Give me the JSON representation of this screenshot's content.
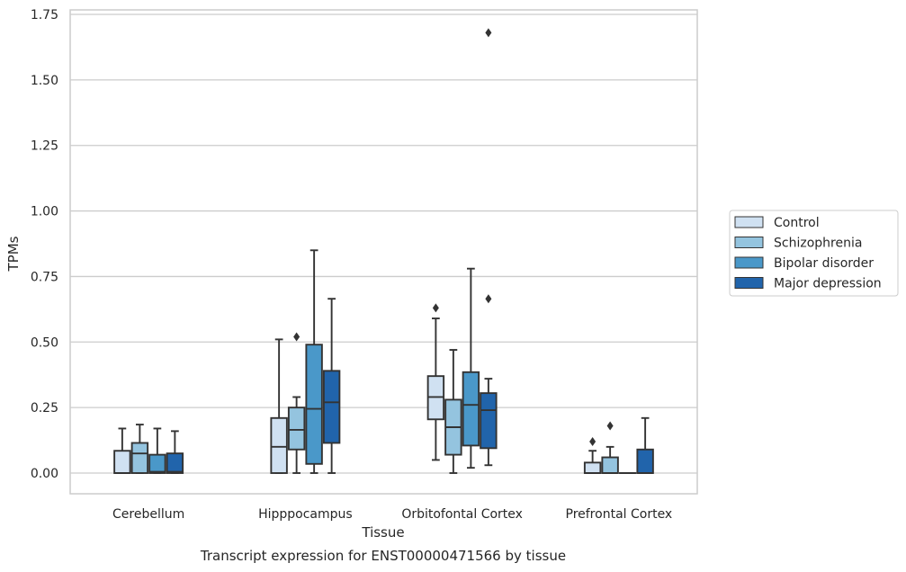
{
  "chart_data": {
    "type": "box",
    "title": "",
    "xlabel": "Tissue",
    "ylabel": "TPMs",
    "caption": "Transcript expression for ENST00000471566 by tissue",
    "ylim": [
      -0.08,
      1.76
    ],
    "yticks": [
      0.0,
      0.25,
      0.5,
      0.75,
      1.0,
      1.25,
      1.5,
      1.75
    ],
    "ytick_labels": [
      "0.00",
      "0.25",
      "0.50",
      "0.75",
      "1.00",
      "1.25",
      "1.50",
      "1.75"
    ],
    "grid": "horizontal",
    "legend_position": "right",
    "categories": [
      "Cerebellum",
      "Hipppocampus",
      "Orbitofontal Cortex",
      "Prefrontal Cortex"
    ],
    "series": [
      {
        "name": "Control",
        "color": "#d0e1f2",
        "boxes": [
          {
            "whislo": 0.0,
            "q1": 0.0,
            "med": 0.0,
            "q3": 0.085,
            "whishi": 0.17,
            "fliers": []
          },
          {
            "whislo": 0.0,
            "q1": 0.0,
            "med": 0.1,
            "q3": 0.21,
            "whishi": 0.51,
            "fliers": []
          },
          {
            "whislo": 0.05,
            "q1": 0.205,
            "med": 0.29,
            "q3": 0.37,
            "whishi": 0.59,
            "fliers": [
              0.63
            ]
          },
          {
            "whislo": 0.0,
            "q1": 0.0,
            "med": 0.0,
            "q3": 0.04,
            "whishi": 0.085,
            "fliers": [
              0.12
            ]
          }
        ]
      },
      {
        "name": "Schizophrenia",
        "color": "#94c4df",
        "boxes": [
          {
            "whislo": 0.0,
            "q1": 0.0,
            "med": 0.075,
            "q3": 0.115,
            "whishi": 0.185,
            "fliers": []
          },
          {
            "whislo": 0.0,
            "q1": 0.09,
            "med": 0.165,
            "q3": 0.25,
            "whishi": 0.29,
            "fliers": [
              0.52
            ]
          },
          {
            "whislo": 0.0,
            "q1": 0.07,
            "med": 0.175,
            "q3": 0.28,
            "whishi": 0.47,
            "fliers": []
          },
          {
            "whislo": 0.0,
            "q1": 0.0,
            "med": 0.0,
            "q3": 0.06,
            "whishi": 0.1,
            "fliers": [
              0.18
            ]
          }
        ]
      },
      {
        "name": "Bipolar disorder",
        "color": "#4a98c9",
        "boxes": [
          {
            "whislo": 0.0,
            "q1": 0.0,
            "med": 0.005,
            "q3": 0.07,
            "whishi": 0.17,
            "fliers": []
          },
          {
            "whislo": 0.0,
            "q1": 0.035,
            "med": 0.245,
            "q3": 0.49,
            "whishi": 0.85,
            "fliers": []
          },
          {
            "whislo": 0.02,
            "q1": 0.105,
            "med": 0.26,
            "q3": 0.385,
            "whishi": 0.78,
            "fliers": []
          },
          {
            "whislo": 0.0,
            "q1": 0.0,
            "med": 0.0,
            "q3": 0.0,
            "whishi": 0.0,
            "fliers": []
          }
        ]
      },
      {
        "name": "Major depression",
        "color": "#2164ab",
        "boxes": [
          {
            "whislo": 0.0,
            "q1": 0.0,
            "med": 0.005,
            "q3": 0.075,
            "whishi": 0.16,
            "fliers": []
          },
          {
            "whislo": 0.0,
            "q1": 0.115,
            "med": 0.27,
            "q3": 0.39,
            "whishi": 0.665,
            "fliers": []
          },
          {
            "whislo": 0.03,
            "q1": 0.095,
            "med": 0.24,
            "q3": 0.305,
            "whishi": 0.36,
            "fliers": [
              0.665,
              1.68
            ]
          },
          {
            "whislo": 0.0,
            "q1": 0.0,
            "med": 0.0,
            "q3": 0.09,
            "whishi": 0.21,
            "fliers": []
          }
        ]
      }
    ]
  }
}
